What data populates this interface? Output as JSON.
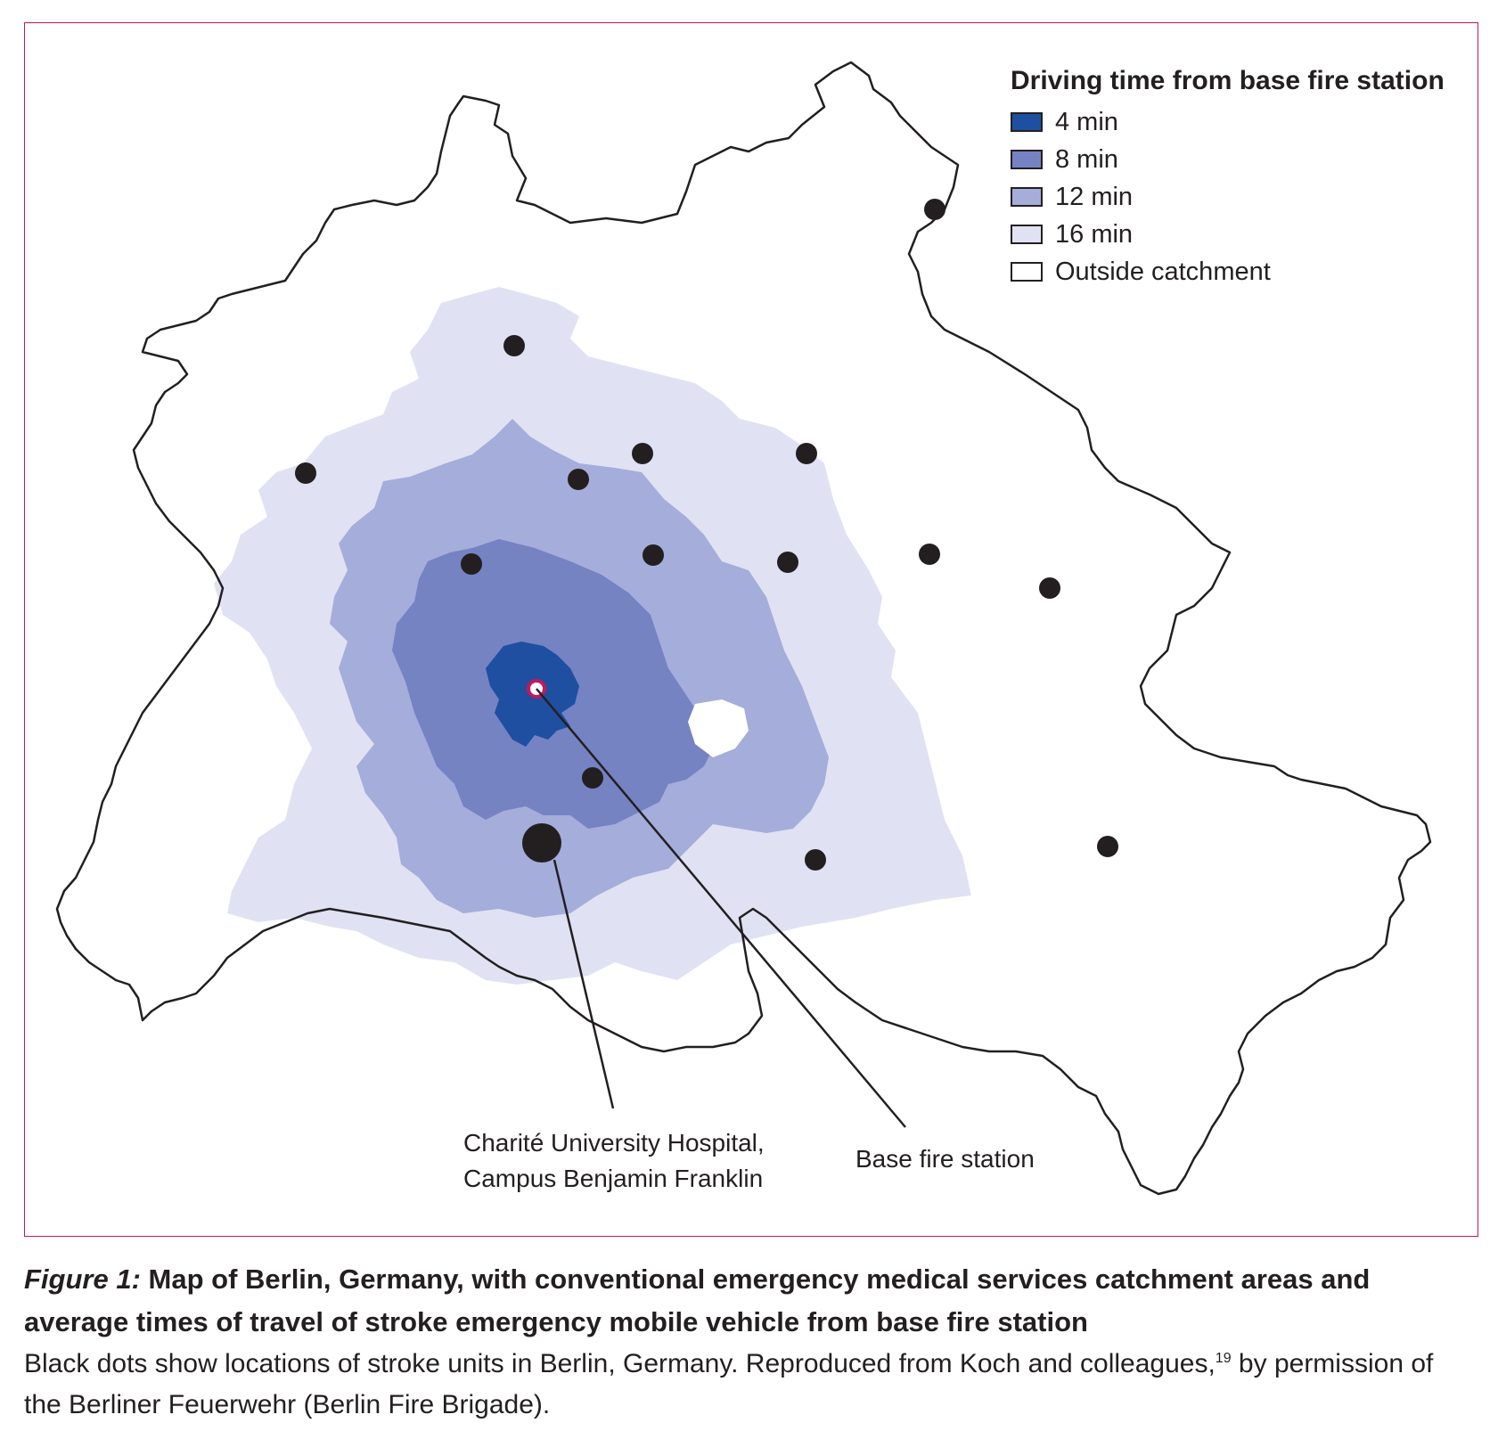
{
  "legend": {
    "title": "Driving time from base fire station",
    "items": [
      {
        "label": "4 min",
        "color": "#1f4fa0"
      },
      {
        "label": "8 min",
        "color": "#7583c3"
      },
      {
        "label": "12 min",
        "color": "#a5addb"
      },
      {
        "label": "16 min",
        "color": "#e0e2f3"
      },
      {
        "label": "Outside catchment",
        "color": "#ffffff"
      }
    ]
  },
  "map": {
    "boundary_color": "#231f20",
    "stroke_unit_color": "#231f20",
    "base_station_ring_color": "#c2185b",
    "frame_color": "#c2185b"
  },
  "callouts": {
    "hospital_line1": "Charité University Hospital,",
    "hospital_line2": "Campus Benjamin Franklin",
    "station": "Base fire station"
  },
  "caption": {
    "fig_label": "Figure 1:",
    "title": " Map of Berlin, Germany, with conventional emergency medical services catchment areas and average times of travel of stroke emergency mobile vehicle from base fire station",
    "body_part1": "Black dots show locations of stroke units in Berlin, Germany. Reproduced from Koch and colleagues,",
    "ref": "19",
    "body_part2": " by permission of the Berliner Feuerwehr (Berlin Fire Brigade)."
  }
}
